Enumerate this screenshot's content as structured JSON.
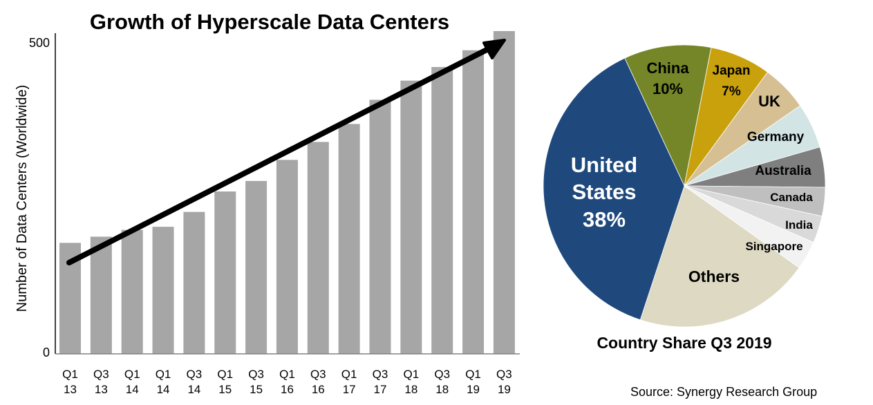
{
  "chart_data": [
    {
      "type": "bar",
      "title": "Growth of Hyperscale Data Centers",
      "ylabel": "Number of Data Centers (Worldwide)",
      "xlabel": "",
      "ylim": [
        0,
        500
      ],
      "yticks": [
        "0",
        "500"
      ],
      "categories": [
        [
          "Q1",
          "13"
        ],
        [
          "Q3",
          "13"
        ],
        [
          "Q1",
          "14"
        ],
        [
          "Q1",
          "14"
        ],
        [
          "Q3",
          "14"
        ],
        [
          "Q1",
          "15"
        ],
        [
          "Q3",
          "15"
        ],
        [
          "Q1",
          "16"
        ],
        [
          "Q3",
          "16"
        ],
        [
          "Q1",
          "17"
        ],
        [
          "Q3",
          "17"
        ],
        [
          "Q1",
          "18"
        ],
        [
          "Q3",
          "18"
        ],
        [
          "Q1",
          "19"
        ],
        [
          "Q3",
          "19"
        ]
      ],
      "values": [
        177,
        187,
        198,
        203,
        227,
        260,
        277,
        311,
        340,
        369,
        408,
        439,
        461,
        488,
        519
      ],
      "bar_color": "#a6a6a6",
      "annotation": "upward trend arrow",
      "grid": false
    },
    {
      "type": "pie",
      "title": "Country Share Q3 2019",
      "slices": [
        {
          "label": "China",
          "pct_label": "10%",
          "value": 10,
          "color": "#748628"
        },
        {
          "label": "Japan",
          "pct_label": "7%",
          "value": 7,
          "color": "#c9a10d"
        },
        {
          "label": "UK",
          "value": 5.3,
          "color": "#d6bf92"
        },
        {
          "label": "Germany",
          "value": 5.2,
          "color": "#d2e4e4"
        },
        {
          "label": "Australia",
          "value": 4.6,
          "color": "#7f7f7f"
        },
        {
          "label": "Canada",
          "value": 3.3,
          "color": "#bfbfbf"
        },
        {
          "label": "India",
          "value": 3.1,
          "color": "#d9d9d9"
        },
        {
          "label": "Singapore",
          "value": 3.3,
          "color": "#f2f2f2"
        },
        {
          "label": "Others",
          "value": 20.2,
          "color": "#ddd9c3"
        },
        {
          "label": [
            "United",
            "States"
          ],
          "pct_label": "38%",
          "value": 38,
          "color": "#1f497d"
        }
      ]
    }
  ],
  "source": "Source: Synergy Research Group"
}
